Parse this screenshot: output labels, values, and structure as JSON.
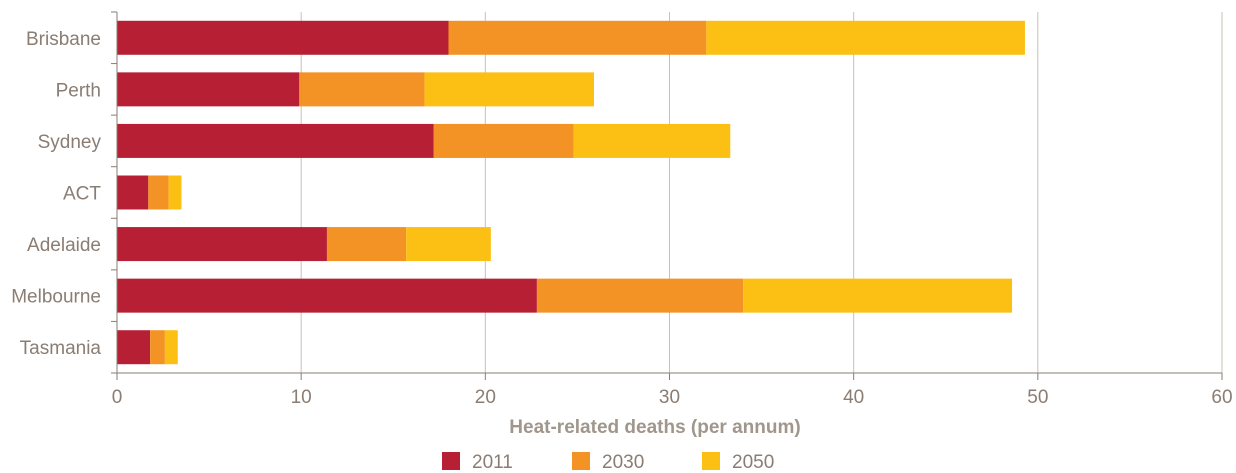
{
  "chart_data": {
    "type": "bar",
    "orientation": "horizontal",
    "stacked": true,
    "categories": [
      "Brisbane",
      "Perth",
      "Sydney",
      "ACT",
      "Adelaide",
      "Melbourne",
      "Tasmania"
    ],
    "series": [
      {
        "name": "2011",
        "color": "#b72034",
        "values": [
          18.0,
          9.9,
          17.2,
          1.7,
          11.4,
          22.8,
          1.8
        ]
      },
      {
        "name": "2030",
        "color": "#f39325",
        "values": [
          14.0,
          6.8,
          7.6,
          1.1,
          4.3,
          11.2,
          0.8
        ]
      },
      {
        "name": "2050",
        "color": "#fcc015",
        "values": [
          17.3,
          9.2,
          8.5,
          0.7,
          4.6,
          14.6,
          0.7
        ]
      }
    ],
    "xlabel": "Heat-related deaths (per annum)",
    "ylabel": "",
    "xlim": [
      0,
      60
    ],
    "xticks": [
      "0",
      "10",
      "20",
      "30",
      "40",
      "50",
      "60"
    ],
    "grid": "vertical",
    "legend_position": "bottom"
  }
}
